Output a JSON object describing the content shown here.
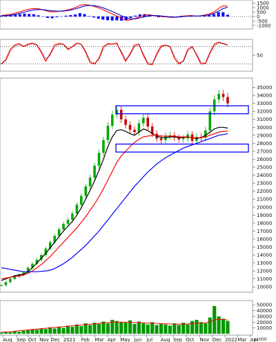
{
  "chart_data": [
    {
      "type": "line",
      "panel": "macd",
      "y_ticks": [
        1500,
        1000,
        500,
        0,
        -500,
        -1000
      ],
      "ylim": [
        -1250,
        1700
      ],
      "series": [
        {
          "color": "#ff0000",
          "values": [
            120,
            180,
            240,
            380,
            520,
            700,
            820,
            900,
            870,
            760,
            600,
            520,
            560,
            620,
            700,
            820,
            1000,
            1250,
            1350,
            1280,
            1150,
            980,
            760,
            520,
            280,
            60,
            -200,
            -420,
            -380,
            -200,
            0,
            150,
            200,
            120,
            40,
            0,
            -60,
            -100,
            -80,
            20,
            80,
            100,
            60,
            80,
            160,
            280,
            500,
            900,
            1200,
            1150
          ]
        },
        {
          "color": "#0000cc",
          "values": [
            60,
            90,
            140,
            240,
            360,
            500,
            640,
            740,
            790,
            780,
            700,
            640,
            610,
            600,
            640,
            720,
            850,
            1020,
            1180,
            1250,
            1220,
            1130,
            980,
            780,
            560,
            330,
            90,
            -150,
            -280,
            -260,
            -150,
            -20,
            90,
            120,
            90,
            40,
            -10,
            -60,
            -70,
            -30,
            30,
            70,
            70,
            70,
            110,
            190,
            330,
            600,
            900,
            1030
          ]
        }
      ],
      "histogram_color": "#0000ff"
    },
    {
      "type": "line",
      "panel": "oscillator",
      "y_ticks": [
        50
      ],
      "ylim": [
        0,
        100
      ],
      "reference_lines": [
        80,
        20
      ],
      "series": [
        {
          "color": "#ff0000",
          "values": [
            20,
            35,
            70,
            85,
            90,
            80,
            88,
            92,
            85,
            60,
            30,
            55,
            85,
            90,
            88,
            70,
            80,
            92,
            88,
            60,
            25,
            20,
            40,
            80,
            90,
            88,
            92,
            60,
            30,
            55,
            85,
            88,
            50,
            20,
            18,
            55,
            82,
            85,
            80,
            40,
            20,
            30,
            70,
            80,
            50,
            20,
            22,
            60,
            88,
            95,
            90,
            85
          ]
        },
        {
          "color": "#000000",
          "values": [
            22,
            30,
            62,
            80,
            86,
            82,
            85,
            89,
            86,
            66,
            38,
            50,
            78,
            87,
            88,
            74,
            78,
            88,
            88,
            66,
            32,
            22,
            34,
            72,
            87,
            88,
            90,
            66,
            36,
            50,
            78,
            86,
            56,
            26,
            20,
            48,
            76,
            84,
            81,
            48,
            25,
            28,
            62,
            77,
            55,
            26,
            22,
            52,
            82,
            92,
            91,
            86
          ]
        }
      ]
    },
    {
      "type": "line",
      "panel": "price",
      "ylim": [
        9500,
        36000
      ],
      "y_ticks": [
        35000,
        34000,
        33000,
        32000,
        31000,
        30000,
        29000,
        28000,
        27000,
        26000,
        25000,
        24000,
        23000,
        22000,
        21000,
        20000,
        19000,
        18000,
        17000,
        16000,
        15000,
        14000,
        13000,
        12000,
        11000,
        10000
      ],
      "x_ticks": [
        "Aug",
        "Sep",
        "Oct",
        "Nov",
        "Dec",
        "2021",
        "Feb",
        "Mar",
        "Apr",
        "May",
        "Jun",
        "Jul",
        "Aug",
        "Sep",
        "Oct",
        "Nov",
        "Dec",
        "2022",
        "Mar",
        "Apr"
      ],
      "close_prices": [
        10200,
        10600,
        11000,
        11300,
        11500,
        11800,
        12400,
        12900,
        13400,
        14000,
        14800,
        15600,
        16400,
        17200,
        17900,
        18400,
        19200,
        20300,
        21400,
        22600,
        23700,
        25200,
        26800,
        28400,
        30200,
        31600,
        32200,
        31000,
        30300,
        29700,
        29400,
        30500,
        31200,
        30100,
        29200,
        28600,
        28400,
        28900,
        29000,
        28700,
        28500,
        28600,
        29100,
        28300,
        28800,
        28700,
        29600,
        32000,
        33500,
        34200,
        33800,
        33000
      ],
      "series": [
        {
          "color": "#000000",
          "values": [
            10800,
            11000,
            11200,
            11400,
            11500,
            11600,
            11900,
            12400,
            13000,
            13600,
            14200,
            14900,
            15600,
            16300,
            17000,
            17600,
            18200,
            19000,
            19900,
            21000,
            22100,
            23300,
            24600,
            26000,
            27600,
            28800,
            29600,
            29700,
            29500,
            29200,
            29000,
            29400,
            29800,
            29600,
            29200,
            28900,
            28700,
            28700,
            28800,
            28800,
            28700,
            28700,
            28800,
            28700,
            28600,
            28700,
            29000,
            29400,
            29800,
            30000,
            30000,
            29900
          ]
        },
        {
          "color": "#ff0000",
          "values": [
            11000,
            11100,
            11200,
            11300,
            11350,
            11500,
            11700,
            12000,
            12400,
            12800,
            13300,
            13800,
            14400,
            15000,
            15600,
            16200,
            16800,
            17400,
            18100,
            18800,
            19600,
            20400,
            21300,
            22300,
            23400,
            24500,
            25600,
            26400,
            27000,
            27600,
            28100,
            28500,
            28800,
            28900,
            29000,
            29000,
            28900,
            28900,
            28900,
            28900,
            28800,
            28800,
            28800,
            28700,
            28700,
            28700,
            28800,
            29000,
            29200,
            29400,
            29500,
            29500
          ]
        },
        {
          "color": "#0000ff",
          "values": [
            12400,
            12300,
            12200,
            12100,
            12000,
            11900,
            11900,
            11900,
            11900,
            11950,
            12000,
            12100,
            12300,
            12600,
            12900,
            13300,
            13700,
            14200,
            14700,
            15200,
            15800,
            16400,
            17000,
            17700,
            18400,
            19100,
            19800,
            20500,
            21200,
            21900,
            22600,
            23200,
            23800,
            24400,
            24900,
            25400,
            25800,
            26200,
            26500,
            26800,
            27100,
            27400,
            27600,
            27800,
            28000,
            28200,
            28400,
            28600,
            28800,
            29000,
            29100,
            29200
          ]
        }
      ],
      "boxes": [
        {
          "from": 31700,
          "to": 32700,
          "color": "#0000ff"
        },
        {
          "from": 26900,
          "to": 27900,
          "color": "#0000ff"
        }
      ]
    },
    {
      "type": "bar",
      "panel": "volume",
      "ylim": [
        0,
        55000
      ],
      "y_ticks": [
        50000,
        40000,
        30000,
        20000,
        10000
      ],
      "y_tick_labels": [
        "50000",
        "40000",
        "30000",
        "20000",
        "10000"
      ],
      "unit": "x1000",
      "bar_color": "#009900",
      "ma_color": "#ff0000",
      "values": [
        2000,
        3000,
        2500,
        4000,
        3500,
        5000,
        6000,
        8000,
        7000,
        9000,
        8000,
        11000,
        9000,
        12000,
        10000,
        14000,
        12000,
        16000,
        13000,
        18000,
        15000,
        19000,
        17000,
        21000,
        18000,
        24000,
        22000,
        20000,
        19000,
        23000,
        17000,
        21000,
        18000,
        16000,
        20000,
        15000,
        17000,
        16000,
        14000,
        18000,
        15000,
        19000,
        16000,
        22000,
        24000,
        20000,
        18000,
        28000,
        48000,
        30000,
        26000,
        22000
      ],
      "ma_values": [
        2500,
        3000,
        3500,
        4200,
        5000,
        5800,
        6600,
        7400,
        8100,
        8800,
        9500,
        10200,
        10900,
        11600,
        12300,
        13000,
        13700,
        14400,
        15100,
        15800,
        16500,
        17200,
        17900,
        18600,
        19300,
        20000,
        20300,
        20100,
        19800,
        19700,
        19400,
        19200,
        18900,
        18500,
        18200,
        17800,
        17500,
        17200,
        16900,
        16700,
        16500,
        16600,
        16800,
        17400,
        18200,
        18600,
        18800,
        20500,
        24000,
        25000,
        24500,
        23500
      ]
    }
  ]
}
